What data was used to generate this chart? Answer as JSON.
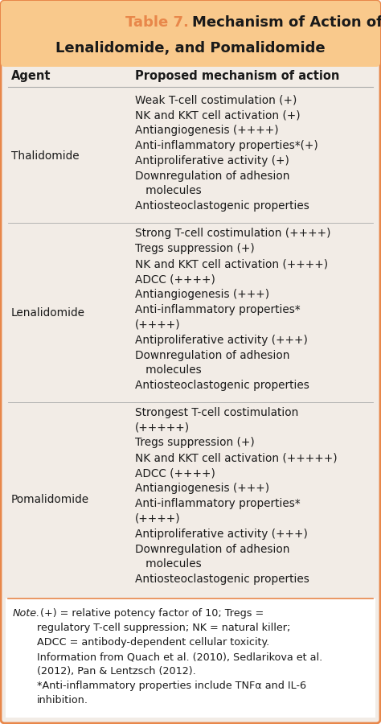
{
  "title_label": "Table 7.",
  "title_rest": "Mechanism of Action of Thalidomide,\nLenalidomide, and Pomalidomide",
  "title_bg": "#f9c98c",
  "border_color": "#e8874a",
  "body_bg": "#f2ece6",
  "note_bg": "#f2ece6",
  "header_col1": "Agent",
  "header_col2": "Proposed mechanism of action",
  "rows": [
    {
      "agent": "Thalidomide",
      "mechanisms": [
        "Weak T-cell costimulation (+)",
        "NK and KKT cell activation (+)",
        "Antiangiogenesis (++++)",
        "Anti-inflammatory properties*(+)",
        "Antiproliferative activity (+)",
        "Downregulation of adhesion\n   molecules",
        "Antiosteoclastogenic properties"
      ]
    },
    {
      "agent": "Lenalidomide",
      "mechanisms": [
        "Strong T-cell costimulation (++++)",
        "Tregs suppression (+)",
        "NK and KKT cell activation (++++)",
        "ADCC (++++)",
        "Antiangiogenesis (+++)",
        "Anti-inflammatory properties*\n(++++)",
        "Antiproliferative activity (+++)",
        "Downregulation of adhesion\n   molecules",
        "Antiosteoclastogenic properties"
      ]
    },
    {
      "agent": "Pomalidomide",
      "mechanisms": [
        "Strongest T-cell costimulation\n(+++++)",
        "Tregs suppression (+)",
        "NK and KKT cell activation (+++++)",
        "ADCC (++++)",
        "Antiangiogenesis (+++)",
        "Anti-inflammatory properties*\n(++++)",
        "Antiproliferative activity (+++)",
        "Downregulation of adhesion\n   molecules",
        "Antiosteoclastogenic properties"
      ]
    }
  ],
  "note_italic": "Note.",
  "note_rest": " (+) = relative potency factor of 10; Tregs =\nregulatory T-cell suppression; NK = natural killer;\nADCC = antibody-dependent cellular toxicity.\nInformation from Quach et al. (2010), Sedlarikova et al.\n(2012), Pan & Lentzsch (2012).\n*Anti-inflammatory properties include TNFα and IL-6\ninhibition.",
  "font_size": 9.8,
  "header_font_size": 10.5,
  "title_font_size": 13.0,
  "note_font_size": 9.2
}
